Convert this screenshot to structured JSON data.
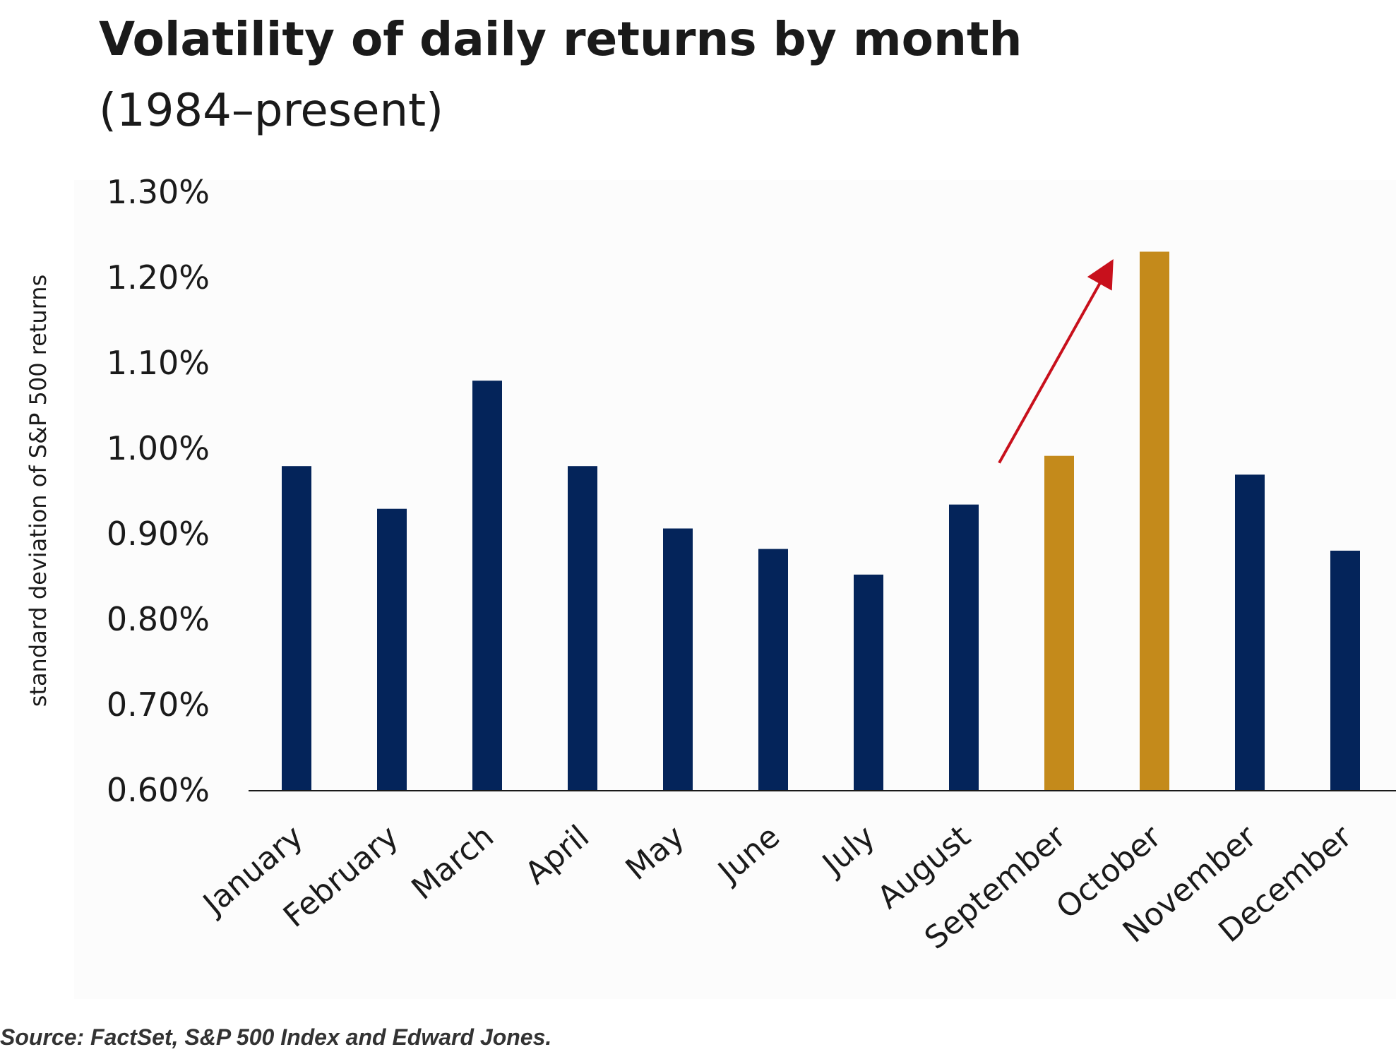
{
  "chart_data": {
    "type": "bar",
    "title": "Volatility of daily returns by month",
    "subtitle": "(1984–present)",
    "ylabel": "standard deviation of S&P 500 returns",
    "xlabel": "",
    "categories": [
      "January",
      "February",
      "March",
      "April",
      "May",
      "June",
      "July",
      "August",
      "September",
      "October",
      "November",
      "December"
    ],
    "values": [
      0.98,
      0.93,
      1.08,
      0.98,
      0.907,
      0.883,
      0.853,
      0.935,
      0.992,
      1.231,
      0.97,
      0.881
    ],
    "highlighted": [
      "September",
      "October"
    ],
    "ylim": [
      0.6,
      1.3
    ],
    "yticks": [
      "0.60%",
      "0.70%",
      "0.80%",
      "0.90%",
      "1.00%",
      "1.10%",
      "1.20%",
      "1.30%"
    ],
    "ytick_values": [
      0.6,
      0.7,
      0.8,
      0.9,
      1.0,
      1.1,
      1.2,
      1.3
    ],
    "grid": false,
    "legend": "none",
    "annotation": "red-arrow from August to October",
    "colors": {
      "bar": "#04245a",
      "highlight": "#c48a1b",
      "arrow": "#c8101c"
    }
  },
  "footer": {
    "source": "Source: FactSet, S&P 500 Index and Edward Jones."
  }
}
